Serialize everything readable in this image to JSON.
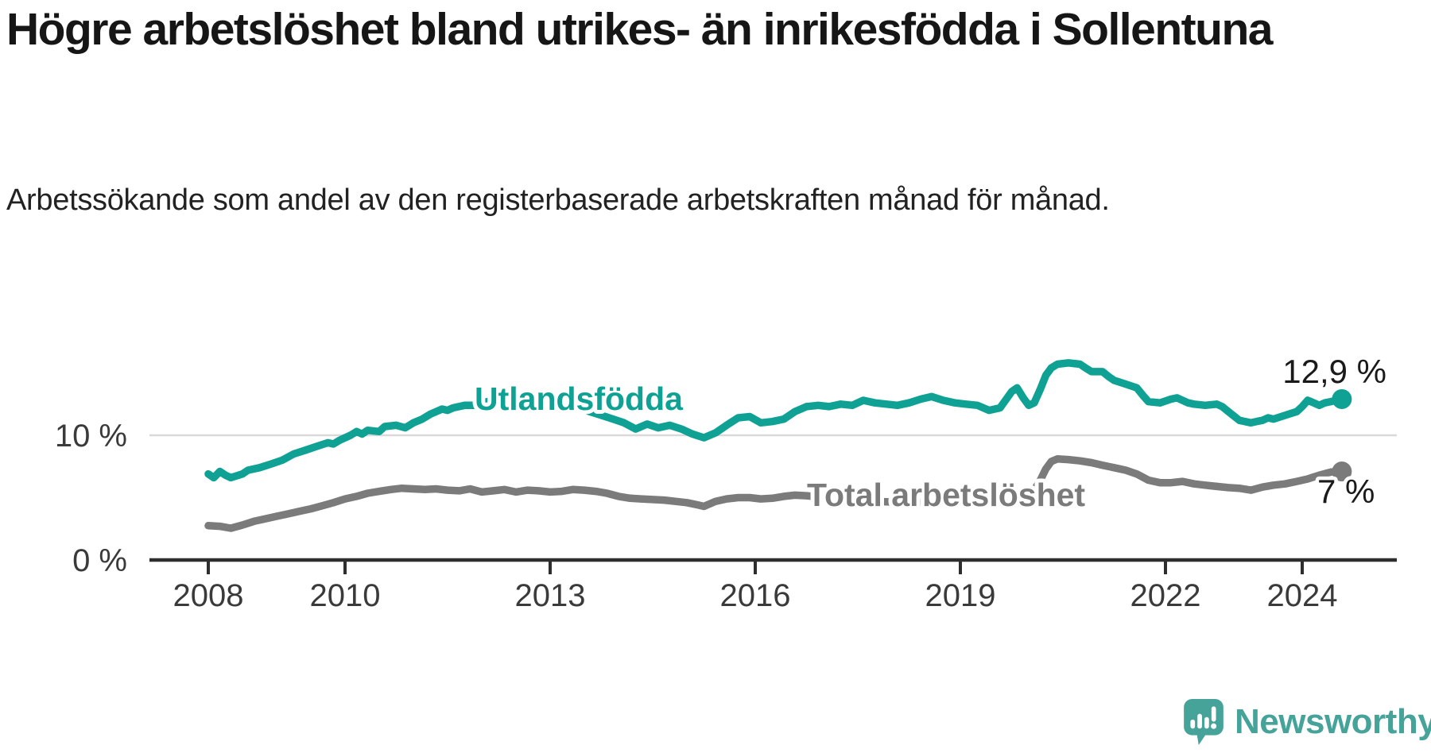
{
  "header": {
    "title": "Högre arbetslöshet bland utrikes- än inrikesfödda i Sollentuna",
    "subtitle": "Arbetssökande som andel av den registerbaserade arbetskraften månad för månad."
  },
  "footer": {
    "brand": "Newsworthy"
  },
  "colors": {
    "teal": "#0FA294",
    "gray": "#7B7B7B",
    "axis": "#2E2E2E",
    "grid": "#D9D9D9",
    "text": "#1A1A1A",
    "logo": "#46A39A"
  },
  "chart_data": {
    "type": "line",
    "unit": "%",
    "grid": "single horizontal line at 10 %",
    "legend_position": "labels placed on lines",
    "x_axis": {
      "range": [
        2008,
        2024.75
      ],
      "ticks": [
        {
          "t": 2008,
          "label": "2008"
        },
        {
          "t": 2010,
          "label": "2010"
        },
        {
          "t": 2013,
          "label": "2013"
        },
        {
          "t": 2016,
          "label": "2016"
        },
        {
          "t": 2019,
          "label": "2019"
        },
        {
          "t": 2022,
          "label": "2022"
        },
        {
          "t": 2024,
          "label": "2024"
        }
      ]
    },
    "y_axis": {
      "range": [
        0,
        16
      ],
      "ticks": [
        {
          "v": 0,
          "label": "0 %",
          "grid": false
        },
        {
          "v": 10,
          "label": "10 %",
          "grid": true
        }
      ]
    },
    "series": [
      {
        "name": "Utlandsfödda",
        "color": "#0FA294",
        "end_label": "12,9 %",
        "end_value": 12.9,
        "points": [
          [
            2008.0,
            6.9
          ],
          [
            2008.08,
            6.6
          ],
          [
            2008.17,
            7.1
          ],
          [
            2008.25,
            6.8
          ],
          [
            2008.33,
            6.6
          ],
          [
            2008.5,
            6.9
          ],
          [
            2008.58,
            7.2
          ],
          [
            2008.75,
            7.4
          ],
          [
            2008.92,
            7.7
          ],
          [
            2009.08,
            8.0
          ],
          [
            2009.25,
            8.5
          ],
          [
            2009.42,
            8.8
          ],
          [
            2009.58,
            9.1
          ],
          [
            2009.75,
            9.4
          ],
          [
            2009.83,
            9.3
          ],
          [
            2009.92,
            9.6
          ],
          [
            2010.08,
            10.0
          ],
          [
            2010.17,
            10.3
          ],
          [
            2010.25,
            10.1
          ],
          [
            2010.33,
            10.4
          ],
          [
            2010.5,
            10.3
          ],
          [
            2010.58,
            10.7
          ],
          [
            2010.75,
            10.8
          ],
          [
            2010.88,
            10.6
          ],
          [
            2011.0,
            11.0
          ],
          [
            2011.13,
            11.3
          ],
          [
            2011.25,
            11.7
          ],
          [
            2011.42,
            12.1
          ],
          [
            2011.5,
            12.0
          ],
          [
            2011.58,
            12.2
          ],
          [
            2011.75,
            12.4
          ],
          [
            2011.92,
            12.4
          ],
          [
            2012.0,
            12.6
          ],
          [
            2012.17,
            12.8
          ],
          [
            2012.33,
            12.7
          ],
          [
            2012.42,
            12.8
          ],
          [
            2012.58,
            12.6
          ],
          [
            2012.75,
            12.7
          ],
          [
            2012.92,
            12.6
          ],
          [
            2013.08,
            12.5
          ],
          [
            2013.25,
            12.4
          ],
          [
            2013.42,
            12.2
          ],
          [
            2013.58,
            11.9
          ],
          [
            2013.75,
            11.6
          ],
          [
            2013.92,
            11.3
          ],
          [
            2014.08,
            11.0
          ],
          [
            2014.25,
            10.5
          ],
          [
            2014.42,
            10.9
          ],
          [
            2014.58,
            10.6
          ],
          [
            2014.75,
            10.8
          ],
          [
            2014.92,
            10.5
          ],
          [
            2015.08,
            10.1
          ],
          [
            2015.25,
            9.8
          ],
          [
            2015.42,
            10.2
          ],
          [
            2015.58,
            10.8
          ],
          [
            2015.75,
            11.4
          ],
          [
            2015.92,
            11.5
          ],
          [
            2016.08,
            11.0
          ],
          [
            2016.25,
            11.1
          ],
          [
            2016.42,
            11.3
          ],
          [
            2016.58,
            11.9
          ],
          [
            2016.75,
            12.3
          ],
          [
            2016.92,
            12.4
          ],
          [
            2017.08,
            12.3
          ],
          [
            2017.25,
            12.5
          ],
          [
            2017.42,
            12.4
          ],
          [
            2017.58,
            12.8
          ],
          [
            2017.75,
            12.6
          ],
          [
            2017.92,
            12.5
          ],
          [
            2018.08,
            12.4
          ],
          [
            2018.25,
            12.6
          ],
          [
            2018.42,
            12.9
          ],
          [
            2018.58,
            13.1
          ],
          [
            2018.75,
            12.8
          ],
          [
            2018.92,
            12.6
          ],
          [
            2019.08,
            12.5
          ],
          [
            2019.25,
            12.4
          ],
          [
            2019.42,
            12.0
          ],
          [
            2019.58,
            12.2
          ],
          [
            2019.75,
            13.5
          ],
          [
            2019.83,
            13.8
          ],
          [
            2019.92,
            13.0
          ],
          [
            2020.0,
            12.4
          ],
          [
            2020.08,
            12.6
          ],
          [
            2020.17,
            13.7
          ],
          [
            2020.25,
            14.8
          ],
          [
            2020.33,
            15.4
          ],
          [
            2020.42,
            15.7
          ],
          [
            2020.58,
            15.8
          ],
          [
            2020.75,
            15.7
          ],
          [
            2020.83,
            15.4
          ],
          [
            2020.92,
            15.1
          ],
          [
            2021.08,
            15.1
          ],
          [
            2021.17,
            14.7
          ],
          [
            2021.25,
            14.4
          ],
          [
            2021.42,
            14.1
          ],
          [
            2021.58,
            13.8
          ],
          [
            2021.67,
            13.2
          ],
          [
            2021.75,
            12.7
          ],
          [
            2021.92,
            12.6
          ],
          [
            2022.08,
            12.9
          ],
          [
            2022.17,
            13.0
          ],
          [
            2022.33,
            12.6
          ],
          [
            2022.42,
            12.5
          ],
          [
            2022.58,
            12.4
          ],
          [
            2022.75,
            12.5
          ],
          [
            2022.83,
            12.3
          ],
          [
            2022.92,
            11.9
          ],
          [
            2023.08,
            11.2
          ],
          [
            2023.25,
            11.0
          ],
          [
            2023.33,
            11.1
          ],
          [
            2023.42,
            11.2
          ],
          [
            2023.5,
            11.4
          ],
          [
            2023.58,
            11.3
          ],
          [
            2023.75,
            11.6
          ],
          [
            2023.92,
            11.9
          ],
          [
            2024.0,
            12.3
          ],
          [
            2024.08,
            12.8
          ],
          [
            2024.17,
            12.6
          ],
          [
            2024.25,
            12.4
          ],
          [
            2024.33,
            12.6
          ],
          [
            2024.42,
            12.7
          ],
          [
            2024.58,
            12.9
          ]
        ]
      },
      {
        "name": "Total arbetslöshet",
        "color": "#7B7B7B",
        "end_label": "7 %",
        "end_value": 7,
        "points": [
          [
            2008.0,
            2.75
          ],
          [
            2008.17,
            2.7
          ],
          [
            2008.33,
            2.55
          ],
          [
            2008.5,
            2.8
          ],
          [
            2008.67,
            3.1
          ],
          [
            2008.83,
            3.3
          ],
          [
            2009.0,
            3.5
          ],
          [
            2009.17,
            3.7
          ],
          [
            2009.33,
            3.9
          ],
          [
            2009.5,
            4.1
          ],
          [
            2009.67,
            4.35
          ],
          [
            2009.83,
            4.6
          ],
          [
            2010.0,
            4.9
          ],
          [
            2010.17,
            5.1
          ],
          [
            2010.33,
            5.35
          ],
          [
            2010.5,
            5.5
          ],
          [
            2010.67,
            5.65
          ],
          [
            2010.83,
            5.75
          ],
          [
            2011.0,
            5.7
          ],
          [
            2011.17,
            5.65
          ],
          [
            2011.33,
            5.7
          ],
          [
            2011.5,
            5.6
          ],
          [
            2011.67,
            5.55
          ],
          [
            2011.83,
            5.7
          ],
          [
            2012.0,
            5.45
          ],
          [
            2012.17,
            5.55
          ],
          [
            2012.33,
            5.65
          ],
          [
            2012.5,
            5.45
          ],
          [
            2012.67,
            5.6
          ],
          [
            2012.83,
            5.55
          ],
          [
            2013.0,
            5.45
          ],
          [
            2013.17,
            5.5
          ],
          [
            2013.33,
            5.65
          ],
          [
            2013.5,
            5.6
          ],
          [
            2013.67,
            5.5
          ],
          [
            2013.83,
            5.35
          ],
          [
            2014.0,
            5.1
          ],
          [
            2014.17,
            4.95
          ],
          [
            2014.33,
            4.9
          ],
          [
            2014.5,
            4.85
          ],
          [
            2014.67,
            4.8
          ],
          [
            2014.83,
            4.7
          ],
          [
            2015.0,
            4.6
          ],
          [
            2015.17,
            4.4
          ],
          [
            2015.25,
            4.3
          ],
          [
            2015.42,
            4.7
          ],
          [
            2015.58,
            4.9
          ],
          [
            2015.75,
            5.0
          ],
          [
            2015.92,
            5.0
          ],
          [
            2016.08,
            4.9
          ],
          [
            2016.25,
            4.95
          ],
          [
            2016.42,
            5.1
          ],
          [
            2016.58,
            5.2
          ],
          [
            2016.75,
            5.15
          ],
          [
            2017.0,
            5.0
          ],
          [
            2017.25,
            4.85
          ],
          [
            2017.5,
            4.75
          ],
          [
            2017.75,
            4.7
          ],
          [
            2018.0,
            4.65
          ],
          [
            2018.25,
            4.6
          ],
          [
            2018.5,
            4.6
          ],
          [
            2018.75,
            4.65
          ],
          [
            2019.0,
            4.7
          ],
          [
            2019.25,
            4.8
          ],
          [
            2019.5,
            4.9
          ],
          [
            2019.75,
            5.1
          ],
          [
            2019.92,
            5.3
          ],
          [
            2020.08,
            5.6
          ],
          [
            2020.17,
            6.4
          ],
          [
            2020.25,
            7.3
          ],
          [
            2020.33,
            7.9
          ],
          [
            2020.42,
            8.1
          ],
          [
            2020.58,
            8.05
          ],
          [
            2020.75,
            7.95
          ],
          [
            2020.92,
            7.8
          ],
          [
            2021.08,
            7.6
          ],
          [
            2021.25,
            7.4
          ],
          [
            2021.42,
            7.2
          ],
          [
            2021.58,
            6.9
          ],
          [
            2021.75,
            6.4
          ],
          [
            2021.92,
            6.2
          ],
          [
            2022.08,
            6.2
          ],
          [
            2022.25,
            6.3
          ],
          [
            2022.42,
            6.1
          ],
          [
            2022.58,
            6.0
          ],
          [
            2022.75,
            5.9
          ],
          [
            2022.92,
            5.8
          ],
          [
            2023.08,
            5.75
          ],
          [
            2023.25,
            5.6
          ],
          [
            2023.42,
            5.85
          ],
          [
            2023.58,
            6.0
          ],
          [
            2023.75,
            6.1
          ],
          [
            2023.92,
            6.3
          ],
          [
            2024.08,
            6.5
          ],
          [
            2024.25,
            6.8
          ],
          [
            2024.42,
            7.05
          ],
          [
            2024.58,
            7.1
          ]
        ]
      }
    ]
  }
}
